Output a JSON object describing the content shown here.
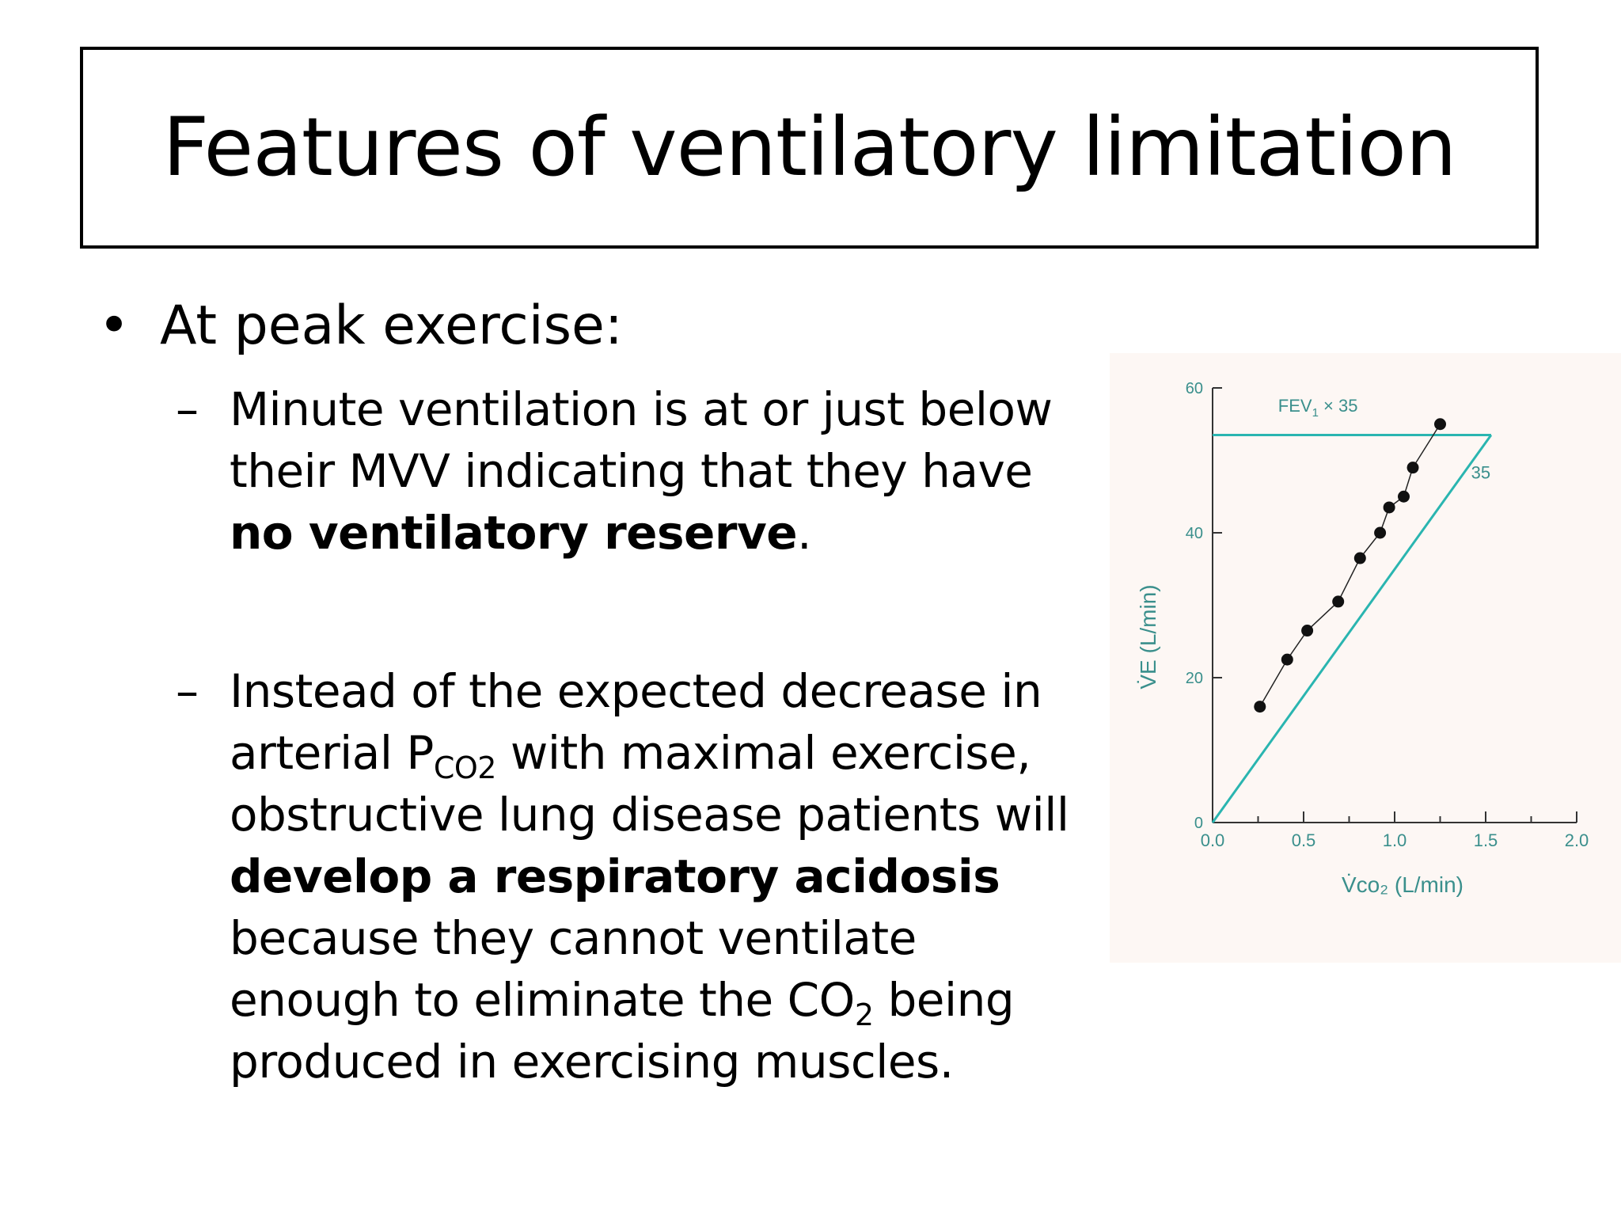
{
  "slide": {
    "title": "Features of ventilatory limitation",
    "bullet": "At peak exercise:",
    "sub1": {
      "line1": "Minute ventilation is at or just below",
      "line2": "their MVV indicating that they have",
      "line3_bold": "no ventilatory reserve",
      "line3_end": "."
    },
    "sub2": {
      "line1": "Instead of the expected decrease in",
      "line2_a": "arterial P",
      "line2_sub": "CO2",
      "line2_b": " with maximal exercise,",
      "line3": "obstructive lung disease patients will",
      "line4_bold": "develop a respiratory acidosis",
      "line5": "because they cannot ventilate",
      "line6_a": "enough to eliminate the CO",
      "line6_sub": "2",
      "line6_b": " being",
      "line7": "produced in exercising muscles."
    }
  },
  "chart_data": {
    "type": "scatter",
    "xlabel": "V̇co₂ (L/min)",
    "ylabel": "V̇E (L/min)",
    "xlim": [
      0,
      2.0
    ],
    "ylim": [
      0,
      60
    ],
    "x_ticks": [
      "0.0",
      "0.5",
      "1.0",
      "1.5",
      "2.0"
    ],
    "y_ticks": [
      "0",
      "20",
      "40",
      "60"
    ],
    "series": [
      {
        "values_x": [
          0.26,
          0.41,
          0.52,
          0.69,
          0.81,
          0.92,
          0.97,
          1.05,
          1.1,
          1.25
        ],
        "values_y": [
          16,
          22.5,
          26.5,
          30.5,
          36.5,
          40,
          43.5,
          45,
          49,
          55
        ]
      }
    ],
    "annotations": [
      {
        "text": "FEV",
        "sub": "1",
        "rest": " × 35",
        "kind": "mvv-line",
        "y": 53.5
      },
      {
        "text": "35",
        "kind": "slope-line",
        "x_end": 1.53,
        "y_end": 53.5
      }
    ],
    "colors": {
      "reference_lines": "#2ab5b0",
      "points": "#111111",
      "axis": "#333333",
      "labels": "#3a8f8c"
    }
  }
}
